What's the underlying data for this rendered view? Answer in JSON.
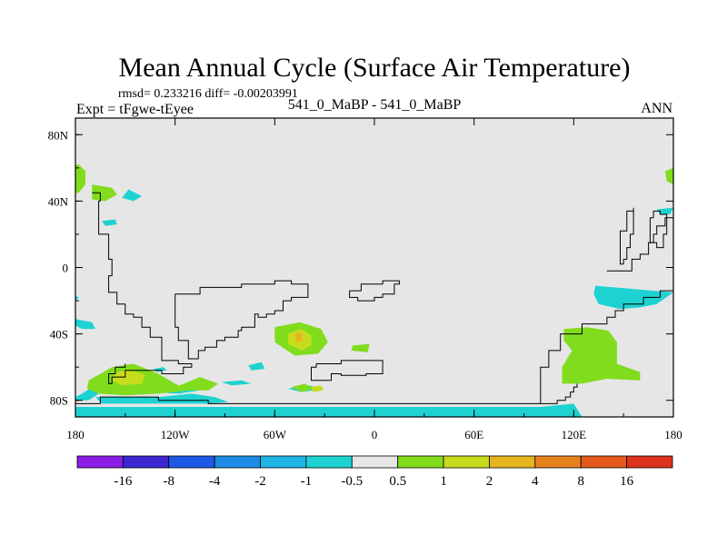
{
  "chart_data": {
    "type": "heatmap",
    "title": "Mean Annual Cycle (Surface Air Temperature)",
    "stats_line": "rmsd= 0.233216 diff= -0.00203991",
    "experiment": "Expt = tFgwe-tEyee",
    "subtitle": "541_0_MaBP - 541_0_MaBP",
    "season": "ANN",
    "x_range": [
      -180,
      180
    ],
    "y_range": [
      -90,
      90
    ],
    "x_ticks": [
      {
        "value": -180,
        "label": "180"
      },
      {
        "value": -120,
        "label": "120W"
      },
      {
        "value": -60,
        "label": "60W"
      },
      {
        "value": 0,
        "label": "0"
      },
      {
        "value": 60,
        "label": "60E"
      },
      {
        "value": 120,
        "label": "120E"
      },
      {
        "value": 180,
        "label": "180"
      }
    ],
    "y_ticks": [
      {
        "value": 80,
        "label": "80N"
      },
      {
        "value": 40,
        "label": "40N"
      },
      {
        "value": 0,
        "label": "0"
      },
      {
        "value": -40,
        "label": "40S"
      },
      {
        "value": -80,
        "label": "80S"
      }
    ],
    "colorbar": {
      "labels": [
        "-16",
        "-8",
        "-4",
        "-2",
        "-1",
        "-0.5",
        "0.5",
        "1",
        "2",
        "4",
        "8",
        "16"
      ],
      "colors": [
        "#8a1ee6",
        "#3c28d2",
        "#1e5ae6",
        "#1e8ce6",
        "#1eb4e6",
        "#1ed2d2",
        "#e6e6e6",
        "#82dc1e",
        "#c8dc1e",
        "#e6b41e",
        "#e6821e",
        "#e65a1e",
        "#dc321e"
      ]
    },
    "regions": [
      {
        "level": "-1 to -0.5",
        "color": "#1ed2d2",
        "points": [
          [
            -180,
            -84
          ],
          [
            -160,
            -84
          ],
          [
            -140,
            -84
          ],
          [
            -100,
            -84
          ],
          [
            -80,
            -84
          ],
          [
            -20,
            -84
          ],
          [
            20,
            -84
          ],
          [
            60,
            -84
          ],
          [
            100,
            -84
          ],
          [
            120,
            -82
          ],
          [
            125,
            -90
          ],
          [
            -180,
            -90
          ]
        ]
      },
      {
        "level": "-1 to -0.5",
        "color": "#1ed2d2",
        "points": [
          [
            -180,
            -80
          ],
          [
            -172,
            -80
          ],
          [
            -166,
            -76
          ],
          [
            -165,
            -70
          ],
          [
            -170,
            -72
          ],
          [
            -176,
            -76
          ],
          [
            -180,
            -78
          ]
        ]
      },
      {
        "level": "-1 to -0.5",
        "color": "#1ed2d2",
        "points": [
          [
            -168,
            -78
          ],
          [
            -130,
            -78
          ],
          [
            -110,
            -76
          ],
          [
            -96,
            -78
          ],
          [
            -88,
            -81
          ],
          [
            -100,
            -82
          ],
          [
            -140,
            -82
          ],
          [
            -164,
            -82
          ]
        ]
      },
      {
        "level": "-1 to -0.5",
        "color": "#1ed2d2",
        "points": [
          [
            -180,
            -31
          ],
          [
            -170,
            -33
          ],
          [
            -168,
            -37
          ],
          [
            -176,
            -37
          ],
          [
            -180,
            -35
          ]
        ]
      },
      {
        "level": "-1 to -0.5",
        "color": "#1ed2d2",
        "points": [
          [
            -180,
            -17
          ],
          [
            -178,
            -18
          ],
          [
            -180,
            -20
          ]
        ]
      },
      {
        "level": "-1 to -0.5",
        "color": "#1ed2d2",
        "points": [
          [
            -133,
            -61
          ],
          [
            -127,
            -60
          ],
          [
            -125,
            -62
          ],
          [
            -131,
            -63
          ]
        ]
      },
      {
        "level": "-1 to -0.5",
        "color": "#1ed2d2",
        "points": [
          [
            -76,
            -59
          ],
          [
            -68,
            -57
          ],
          [
            -66,
            -61
          ],
          [
            -74,
            -62
          ]
        ]
      },
      {
        "level": "-1 to -0.5",
        "color": "#1ed2d2",
        "points": [
          [
            -135,
            -75
          ],
          [
            -120,
            -72
          ],
          [
            -105,
            -74
          ],
          [
            -118,
            -76
          ]
        ]
      },
      {
        "level": "-1 to -0.5",
        "color": "#1ed2d2",
        "points": [
          [
            -92,
            -69
          ],
          [
            -80,
            -68
          ],
          [
            -74,
            -70
          ],
          [
            -86,
            -71
          ]
        ]
      },
      {
        "level": "-1 to -0.5",
        "color": "#1ed2d2",
        "points": [
          [
            -52,
            -73
          ],
          [
            -40,
            -71
          ],
          [
            -30,
            -73
          ],
          [
            -44,
            -75
          ]
        ]
      },
      {
        "level": "-1 to -0.5",
        "color": "#1ed2d2",
        "points": [
          [
            -148,
            47
          ],
          [
            -140,
            43
          ],
          [
            -145,
            40
          ],
          [
            -152,
            42
          ]
        ]
      },
      {
        "level": "-1 to -0.5",
        "color": "#1ed2d2",
        "points": [
          [
            -164,
            28
          ],
          [
            -156,
            29
          ],
          [
            -155,
            26
          ],
          [
            -162,
            25
          ]
        ]
      },
      {
        "level": "-1 to -0.5",
        "color": "#1ed2d2",
        "points": [
          [
            133,
            -11
          ],
          [
            180,
            -15
          ],
          [
            170,
            -22
          ],
          [
            160,
            -24
          ],
          [
            148,
            -25
          ],
          [
            135,
            -22
          ],
          [
            132,
            -16
          ]
        ]
      },
      {
        "level": "-1 to -0.5",
        "color": "#1ed2d2",
        "points": [
          [
            170,
            35
          ],
          [
            180,
            36
          ],
          [
            178,
            32
          ],
          [
            172,
            32
          ]
        ]
      },
      {
        "level": "0.5 to 1",
        "color": "#82dc1e",
        "points": [
          [
            -172,
            -68
          ],
          [
            -158,
            -60
          ],
          [
            -145,
            -58
          ],
          [
            -130,
            -64
          ],
          [
            -120,
            -70
          ],
          [
            -112,
            -74
          ],
          [
            -130,
            -76
          ],
          [
            -150,
            -77
          ],
          [
            -166,
            -76
          ],
          [
            -173,
            -73
          ]
        ]
      },
      {
        "level": "0.5 to 1",
        "color": "#82dc1e",
        "points": [
          [
            -120,
            -72
          ],
          [
            -105,
            -66
          ],
          [
            -94,
            -70
          ],
          [
            -100,
            -74
          ],
          [
            -112,
            -74
          ]
        ]
      },
      {
        "level": "0.5 to 1",
        "color": "#82dc1e",
        "points": [
          [
            -60,
            -36
          ],
          [
            -45,
            -33
          ],
          [
            -32,
            -37
          ],
          [
            -28,
            -45
          ],
          [
            -34,
            -52
          ],
          [
            -48,
            -53
          ],
          [
            -60,
            -45
          ]
        ]
      },
      {
        "level": "0.5 to 1",
        "color": "#82dc1e",
        "points": [
          [
            -50,
            -72
          ],
          [
            -42,
            -70
          ],
          [
            -36,
            -73
          ],
          [
            -44,
            -75
          ]
        ]
      },
      {
        "level": "0.5 to 1",
        "color": "#82dc1e",
        "points": [
          [
            -13,
            -47
          ],
          [
            -3,
            -46
          ],
          [
            -4,
            -51
          ],
          [
            -14,
            -50
          ]
        ]
      },
      {
        "level": "0.5 to 1",
        "color": "#82dc1e",
        "points": [
          [
            114,
            -37
          ],
          [
            128,
            -36
          ],
          [
            141,
            -38
          ],
          [
            146,
            -45
          ],
          [
            146,
            -58
          ],
          [
            160,
            -63
          ],
          [
            160,
            -68
          ],
          [
            140,
            -67
          ],
          [
            125,
            -70
          ],
          [
            113,
            -70
          ],
          [
            113,
            -60
          ],
          [
            119,
            -50
          ],
          [
            114,
            -44
          ]
        ]
      },
      {
        "level": "0.5 to 1",
        "color": "#82dc1e",
        "points": [
          [
            -178,
            62
          ],
          [
            -174,
            58
          ],
          [
            -174,
            50
          ],
          [
            -178,
            45
          ],
          [
            -180,
            45
          ],
          [
            -180,
            62
          ]
        ]
      },
      {
        "level": "0.5 to 1",
        "color": "#82dc1e",
        "points": [
          [
            -170,
            50
          ],
          [
            -158,
            48
          ],
          [
            -155,
            44
          ],
          [
            -162,
            40
          ],
          [
            -170,
            41
          ]
        ]
      },
      {
        "level": "0.5 to 1",
        "color": "#82dc1e",
        "points": [
          [
            175,
            58
          ],
          [
            180,
            60
          ],
          [
            180,
            50
          ],
          [
            176,
            52
          ]
        ]
      },
      {
        "level": "1 to 2",
        "color": "#c8dc1e",
        "points": [
          [
            -156,
            -63
          ],
          [
            -146,
            -62
          ],
          [
            -138,
            -65
          ],
          [
            -140,
            -70
          ],
          [
            -152,
            -71
          ],
          [
            -158,
            -68
          ]
        ]
      },
      {
        "level": "1 to 2",
        "color": "#c8dc1e",
        "points": [
          [
            -52,
            -40
          ],
          [
            -44,
            -37
          ],
          [
            -38,
            -41
          ],
          [
            -38,
            -47
          ],
          [
            -44,
            -50
          ],
          [
            -52,
            -46
          ]
        ]
      },
      {
        "level": "1 to 2",
        "color": "#c8dc1e",
        "points": [
          [
            -38,
            -72
          ],
          [
            -32,
            -71
          ],
          [
            -31,
            -74
          ],
          [
            -37,
            -75
          ]
        ]
      },
      {
        "level": "2 to 4",
        "color": "#e6b41e",
        "points": [
          [
            -48,
            -40
          ],
          [
            -44,
            -39
          ],
          [
            -43,
            -44
          ],
          [
            -47,
            -45
          ]
        ]
      }
    ],
    "land_outlines": [
      [
        [
          -180,
          -82
        ],
        [
          -170,
          -82
        ],
        [
          -165,
          -78
        ],
        [
          -150,
          -78
        ],
        [
          -130,
          -80
        ],
        [
          -115,
          -80
        ],
        [
          -100,
          -82
        ],
        [
          -40,
          -82
        ],
        [
          0,
          -82
        ],
        [
          50,
          -82
        ],
        [
          95,
          -82
        ],
        [
          110,
          -80
        ],
        [
          115,
          -78
        ],
        [
          118,
          -75
        ],
        [
          120,
          -72
        ],
        [
          122,
          -70
        ]
      ],
      [
        [
          -170,
          45
        ],
        [
          -165,
          40
        ],
        [
          -166,
          20
        ],
        [
          -160,
          5
        ],
        [
          -158,
          -5
        ],
        [
          -160,
          -15
        ],
        [
          -155,
          -22
        ],
        [
          -150,
          -28
        ],
        [
          -145,
          -30
        ],
        [
          -140,
          -36
        ],
        [
          -135,
          -42
        ],
        [
          -128,
          -46
        ],
        [
          -128,
          -56
        ],
        [
          -118,
          -58
        ],
        [
          -110,
          -60
        ],
        [
          -115,
          -64
        ],
        [
          -128,
          -62
        ],
        [
          -138,
          -62
        ],
        [
          -150,
          -66
        ],
        [
          -158,
          -70
        ],
        [
          -160,
          -64
        ],
        [
          -156,
          -60
        ],
        [
          -150,
          -58
        ]
      ],
      [
        [
          -120,
          -16
        ],
        [
          -105,
          -16
        ],
        [
          -105,
          -12
        ],
        [
          -90,
          -12
        ],
        [
          -80,
          -10
        ],
        [
          -70,
          -10
        ],
        [
          -60,
          -8
        ],
        [
          -50,
          -10
        ],
        [
          -42,
          -10
        ],
        [
          -40,
          -18
        ],
        [
          -50,
          -20
        ],
        [
          -55,
          -26
        ],
        [
          -60,
          -28
        ],
        [
          -65,
          -30
        ],
        [
          -70,
          -28
        ],
        [
          -72,
          -36
        ],
        [
          -80,
          -38
        ],
        [
          -82,
          -42
        ],
        [
          -90,
          -44
        ],
        [
          -95,
          -48
        ],
        [
          -102,
          -50
        ],
        [
          -106,
          -55
        ],
        [
          -112,
          -52
        ],
        [
          -112,
          -44
        ],
        [
          -118,
          -36
        ],
        [
          -120,
          -26
        ],
        [
          -120,
          -16
        ]
      ],
      [
        [
          -15,
          -14
        ],
        [
          -8,
          -10
        ],
        [
          5,
          -8
        ],
        [
          15,
          -10
        ],
        [
          12,
          -16
        ],
        [
          5,
          -18
        ],
        [
          0,
          -20
        ],
        [
          -10,
          -18
        ],
        [
          -15,
          -14
        ]
      ],
      [
        [
          -35,
          -58
        ],
        [
          -25,
          -58
        ],
        [
          -20,
          -56
        ],
        [
          -15,
          -56
        ],
        [
          -5,
          -56
        ],
        [
          5,
          -60
        ],
        [
          5,
          -64
        ],
        [
          -5,
          -65
        ],
        [
          -20,
          -64
        ],
        [
          -26,
          -68
        ],
        [
          -38,
          -66
        ],
        [
          -38,
          -60
        ],
        [
          -35,
          -58
        ]
      ],
      [
        [
          100,
          -82
        ],
        [
          100,
          -60
        ],
        [
          105,
          -50
        ],
        [
          112,
          -40
        ],
        [
          125,
          -34
        ],
        [
          135,
          -34
        ],
        [
          140,
          -30
        ],
        [
          145,
          -26
        ],
        [
          150,
          -22
        ],
        [
          162,
          -18
        ],
        [
          172,
          -14
        ],
        [
          180,
          -10
        ]
      ],
      [
        [
          140,
          -2
        ],
        [
          150,
          -2
        ],
        [
          155,
          5
        ],
        [
          160,
          8
        ],
        [
          165,
          15
        ],
        [
          168,
          20
        ],
        [
          170,
          25
        ],
        [
          175,
          30
        ],
        [
          180,
          32
        ]
      ],
      [
        [
          150,
          2
        ],
        [
          148,
          10
        ],
        [
          148,
          22
        ],
        [
          152,
          30
        ],
        [
          152,
          34
        ],
        [
          156,
          36
        ],
        [
          156,
          20
        ],
        [
          154,
          12
        ],
        [
          152,
          5
        ],
        [
          150,
          2
        ]
      ],
      [
        [
          168,
          30
        ],
        [
          166,
          15
        ],
        [
          170,
          12
        ],
        [
          174,
          20
        ],
        [
          176,
          28
        ],
        [
          176,
          32
        ],
        [
          172,
          34
        ],
        [
          168,
          30
        ]
      ]
    ]
  }
}
